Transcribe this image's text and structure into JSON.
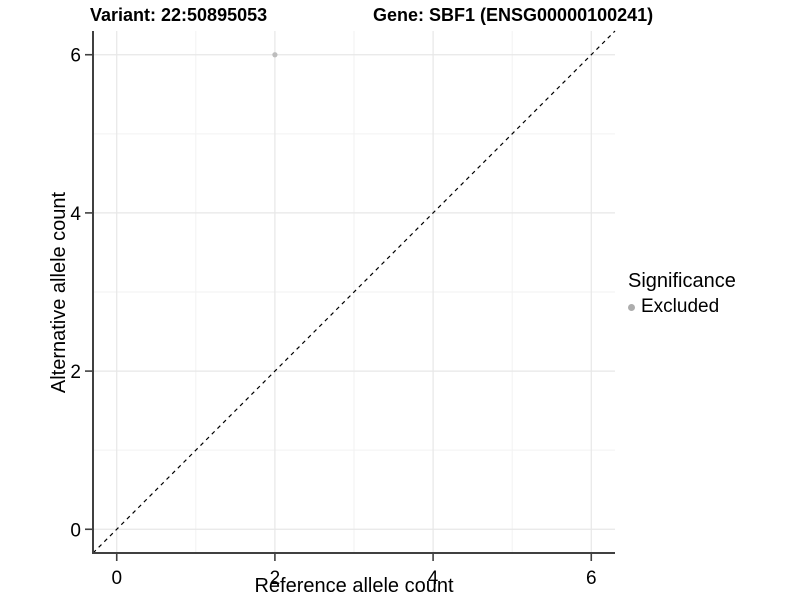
{
  "chart_data": {
    "type": "scatter",
    "title_left": "Variant: 22:50895053",
    "title_right": "Gene: SBF1 (ENSG00000100241)",
    "xlabel": "Reference allele count",
    "ylabel": "Alternative allele count",
    "xlim": [
      -0.3,
      6.3
    ],
    "ylim": [
      -0.3,
      6.3
    ],
    "x_ticks": [
      0,
      2,
      4,
      6
    ],
    "y_ticks": [
      0,
      2,
      4,
      6
    ],
    "x_minor_ticks": [
      1,
      3,
      5
    ],
    "y_minor_ticks": [
      1,
      3,
      5
    ],
    "grid": true,
    "points": [
      {
        "x": 2,
        "y": 6,
        "series": "Excluded"
      }
    ],
    "identity_line": {
      "type": "dashed",
      "slope": 1,
      "intercept": 0,
      "color": "#000000"
    },
    "legend": {
      "title": "Significance",
      "position": "right",
      "items": [
        {
          "label": "Excluded",
          "color": "#adadad"
        }
      ]
    },
    "colors": {
      "point": "#bdbdbd",
      "grid_major": "#e7e7e7",
      "grid_minor": "#f2f2f2",
      "axis_line": "#404040",
      "tick_label": "#000000"
    }
  }
}
